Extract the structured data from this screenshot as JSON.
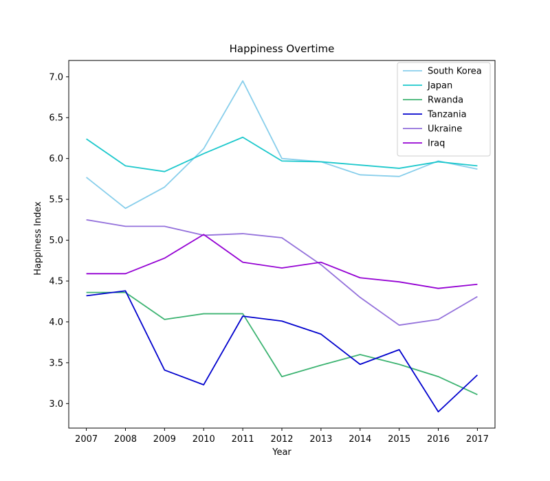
{
  "chart_data": {
    "type": "line",
    "title": "Happiness Overtime",
    "xlabel": "Year",
    "ylabel": "Happiness Index",
    "x": [
      2007,
      2008,
      2009,
      2010,
      2011,
      2012,
      2013,
      2014,
      2015,
      2016,
      2017
    ],
    "xlim": [
      2006.55,
      2017.45
    ],
    "ylim": [
      2.7,
      7.2
    ],
    "yticks": [
      3.0,
      3.5,
      4.0,
      4.5,
      5.0,
      5.5,
      6.0,
      6.5,
      7.0
    ],
    "ytick_labels": [
      "3.0",
      "3.5",
      "4.0",
      "4.5",
      "5.0",
      "5.5",
      "6.0",
      "6.5",
      "7.0"
    ],
    "xtick_labels": [
      "2007",
      "2008",
      "2009",
      "2010",
      "2011",
      "2012",
      "2013",
      "2014",
      "2015",
      "2016",
      "2017"
    ],
    "grid": false,
    "legend_position": "top-right",
    "series": [
      {
        "name": "South Korea",
        "color": "#87ceeb",
        "values": [
          5.77,
          5.39,
          5.65,
          6.12,
          6.95,
          6.0,
          5.96,
          5.8,
          5.78,
          5.97,
          5.87
        ]
      },
      {
        "name": "Japan",
        "color": "#1cc8cc",
        "values": [
          6.24,
          5.91,
          5.84,
          6.06,
          6.26,
          5.97,
          5.96,
          5.92,
          5.88,
          5.96,
          5.91
        ]
      },
      {
        "name": "Rwanda",
        "color": "#3cb371",
        "values": [
          4.36,
          4.36,
          4.03,
          4.1,
          4.1,
          3.33,
          3.47,
          3.6,
          3.48,
          3.33,
          3.11
        ]
      },
      {
        "name": "Tanzania",
        "color": "#0000cd",
        "values": [
          4.32,
          4.38,
          3.41,
          3.23,
          4.07,
          4.01,
          3.85,
          3.48,
          3.66,
          2.9,
          3.35
        ]
      },
      {
        "name": "Ukraine",
        "color": "#9370db",
        "values": [
          5.25,
          5.17,
          5.17,
          5.06,
          5.08,
          5.03,
          4.7,
          4.3,
          3.96,
          4.03,
          4.31
        ]
      },
      {
        "name": "Iraq",
        "color": "#9400d3",
        "values": [
          4.59,
          4.59,
          4.78,
          5.07,
          4.73,
          4.66,
          4.73,
          4.54,
          4.49,
          4.41,
          4.46
        ]
      }
    ]
  }
}
